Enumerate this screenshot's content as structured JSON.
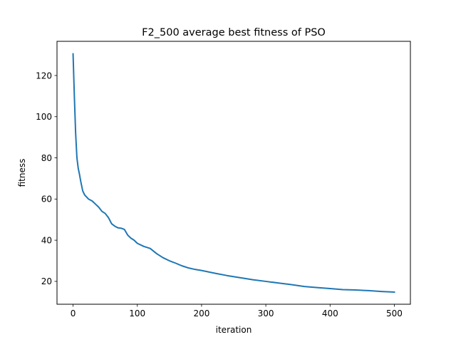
{
  "chart_data": {
    "type": "line",
    "title": "F2_500 average best fitness of PSO",
    "xlabel": "iteration",
    "ylabel": "fitness",
    "xlim": [
      -25,
      525
    ],
    "ylim": [
      8.9,
      136.6
    ],
    "xticks": [
      0,
      100,
      200,
      300,
      400,
      500
    ],
    "yticks": [
      20,
      40,
      60,
      80,
      100,
      120
    ],
    "grid": false,
    "legend": "none",
    "series": [
      {
        "color": "#1f77b4",
        "x": [
          0,
          2,
          4,
          6,
          8,
          10,
          12,
          15,
          18,
          21,
          24,
          27,
          30,
          35,
          40,
          45,
          50,
          55,
          60,
          65,
          70,
          75,
          80,
          85,
          90,
          95,
          100,
          110,
          120,
          130,
          140,
          150,
          160,
          170,
          180,
          190,
          200,
          220,
          240,
          260,
          280,
          300,
          320,
          340,
          360,
          380,
          400,
          420,
          440,
          460,
          480,
          500
        ],
        "y": [
          130.5,
          110,
          92,
          80,
          75,
          72,
          68.5,
          64,
          62,
          61,
          60,
          59.5,
          59,
          57.5,
          56,
          54,
          53,
          51,
          48,
          46.8,
          46,
          45.8,
          45.2,
          42.5,
          41,
          40,
          38.5,
          37,
          36,
          33.5,
          31.5,
          30,
          28.8,
          27.5,
          26.5,
          25.8,
          25.3,
          24,
          22.8,
          21.8,
          20.8,
          20,
          19.2,
          18.4,
          17.5,
          17,
          16.5,
          16,
          15.8,
          15.5,
          15.1,
          14.8
        ]
      }
    ]
  }
}
